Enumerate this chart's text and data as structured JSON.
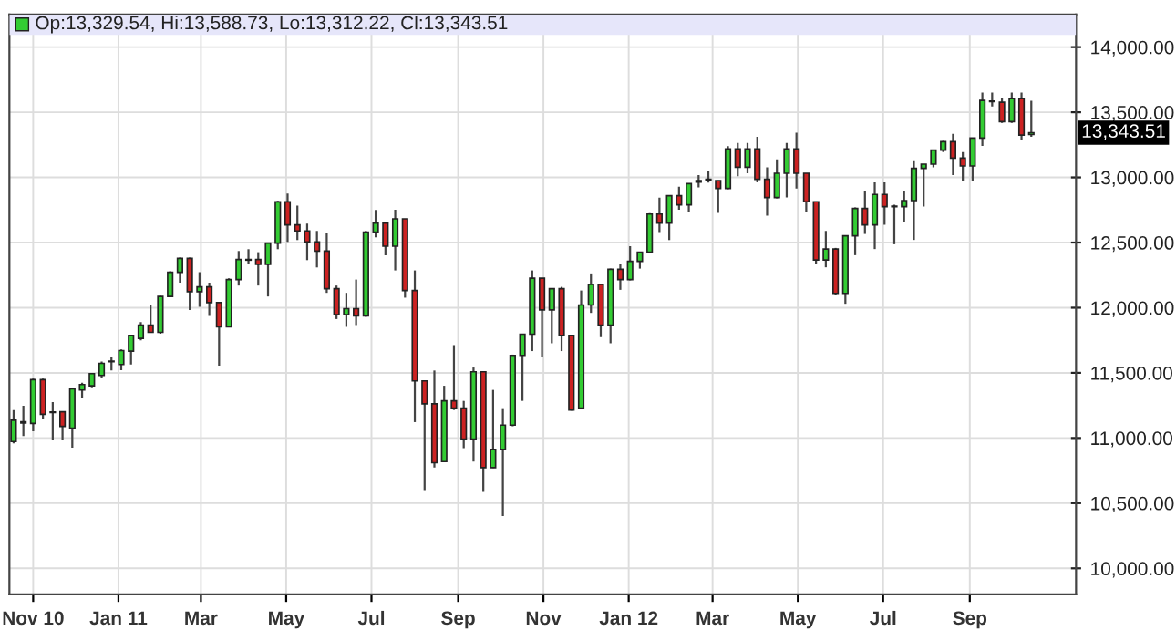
{
  "chart_data": {
    "type": "candlestick",
    "annotations": [
      "Op:13,329.54, Hi:13,588.73, Lo:13,312.22, Cl:13,343.51",
      "13,343.51"
    ],
    "x": [
      "2010-10-18",
      "2010-10-25",
      "2010-11-01",
      "2010-11-08",
      "2010-11-15",
      "2010-11-22",
      "2010-11-29",
      "2010-12-06",
      "2010-12-13",
      "2010-12-20",
      "2010-12-27",
      "2011-01-03",
      "2011-01-10",
      "2011-01-17",
      "2011-01-24",
      "2011-01-31",
      "2011-02-07",
      "2011-02-14",
      "2011-02-21",
      "2011-02-28",
      "2011-03-07",
      "2011-03-14",
      "2011-03-21",
      "2011-03-28",
      "2011-04-04",
      "2011-04-11",
      "2011-04-18",
      "2011-04-25",
      "2011-05-02",
      "2011-05-09",
      "2011-05-16",
      "2011-05-23",
      "2011-05-30",
      "2011-06-06",
      "2011-06-13",
      "2011-06-20",
      "2011-06-27",
      "2011-07-04",
      "2011-07-11",
      "2011-07-18",
      "2011-07-25",
      "2011-08-01",
      "2011-08-08",
      "2011-08-15",
      "2011-08-22",
      "2011-08-29",
      "2011-09-05",
      "2011-09-12",
      "2011-09-19",
      "2011-09-26",
      "2011-10-03",
      "2011-10-10",
      "2011-10-17",
      "2011-10-24",
      "2011-10-31",
      "2011-11-07",
      "2011-11-14",
      "2011-11-21",
      "2011-11-28",
      "2011-12-05",
      "2011-12-12",
      "2011-12-19",
      "2011-12-26",
      "2012-01-02",
      "2012-01-09",
      "2012-01-16",
      "2012-01-23",
      "2012-01-30",
      "2012-02-06",
      "2012-02-13",
      "2012-02-20",
      "2012-02-27",
      "2012-03-05",
      "2012-03-12",
      "2012-03-19",
      "2012-03-26",
      "2012-04-02",
      "2012-04-09",
      "2012-04-16",
      "2012-04-23",
      "2012-04-30",
      "2012-05-07",
      "2012-05-14",
      "2012-05-21",
      "2012-05-28",
      "2012-06-04",
      "2012-06-11",
      "2012-06-18",
      "2012-06-25",
      "2012-07-02",
      "2012-07-09",
      "2012-07-16",
      "2012-07-23",
      "2012-07-30",
      "2012-08-06",
      "2012-08-13",
      "2012-08-20",
      "2012-08-27",
      "2012-09-03",
      "2012-09-10",
      "2012-09-17",
      "2012-09-24",
      "2012-10-01",
      "2012-10-08",
      "2012-10-15"
    ],
    "ohlc": [
      [
        10973,
        11215,
        10959,
        11136
      ],
      [
        11115,
        11248,
        11015,
        11125
      ],
      [
        11112,
        11455,
        11052,
        11448
      ],
      [
        11448,
        11455,
        11145,
        11182
      ],
      [
        11200,
        11275,
        10982,
        11195
      ],
      [
        11201,
        11201,
        10982,
        11089
      ],
      [
        11075,
        11387,
        10926,
        11378
      ],
      [
        11368,
        11425,
        11308,
        11410
      ],
      [
        11401,
        11500,
        11390,
        11494
      ],
      [
        11480,
        11587,
        11462,
        11573
      ],
      [
        11585,
        11620,
        11518,
        11590
      ],
      [
        11564,
        11680,
        11520,
        11671
      ],
      [
        11667,
        11790,
        11564,
        11788
      ],
      [
        11764,
        11890,
        11750,
        11867
      ],
      [
        11867,
        12020,
        11811,
        11811
      ],
      [
        11811,
        12090,
        11800,
        12086
      ],
      [
        12086,
        12280,
        12080,
        12272
      ],
      [
        12272,
        12385,
        12193,
        12379
      ],
      [
        12379,
        12385,
        11983,
        12123
      ],
      [
        12123,
        12272,
        12007,
        12160
      ],
      [
        12160,
        12193,
        11937,
        12039
      ],
      [
        12039,
        12039,
        11555,
        11853
      ],
      [
        11853,
        12226,
        11850,
        12216
      ],
      [
        12216,
        12435,
        12170,
        12370
      ],
      [
        12365,
        12449,
        12332,
        12370
      ],
      [
        12370,
        12426,
        12170,
        12333
      ],
      [
        12333,
        12500,
        12086,
        12496
      ],
      [
        12496,
        12820,
        12449,
        12812
      ],
      [
        12812,
        12877,
        12505,
        12636
      ],
      [
        12636,
        12784,
        12519,
        12589
      ],
      [
        12589,
        12645,
        12365,
        12505
      ],
      [
        12505,
        12589,
        12309,
        12435
      ],
      [
        12435,
        12575,
        12114,
        12146
      ],
      [
        12146,
        12170,
        11913,
        11946
      ],
      [
        11946,
        12114,
        11853,
        11993
      ],
      [
        11993,
        12216,
        11867,
        11937
      ],
      [
        11937,
        12590,
        11930,
        12580
      ],
      [
        12580,
        12750,
        12540,
        12649
      ],
      [
        12649,
        12649,
        12402,
        12472
      ],
      [
        12472,
        12752,
        12286,
        12682
      ],
      [
        12682,
        12682,
        12077,
        12132
      ],
      [
        12132,
        12286,
        11122,
        11438
      ],
      [
        11438,
        11438,
        10600,
        11262
      ],
      [
        11262,
        11518,
        10773,
        10810
      ],
      [
        10819,
        11401,
        10819,
        11285
      ],
      [
        11285,
        11713,
        11215,
        11229
      ],
      [
        11229,
        11285,
        10922,
        10991
      ],
      [
        10991,
        11541,
        10819,
        11508
      ],
      [
        11508,
        11508,
        10586,
        10773
      ],
      [
        10773,
        11369,
        10770,
        10912
      ],
      [
        10912,
        11229,
        10400,
        11099
      ],
      [
        11099,
        11640,
        11090,
        11634
      ],
      [
        11634,
        11800,
        11285,
        11797
      ],
      [
        11797,
        12286,
        11667,
        12226
      ],
      [
        12226,
        12226,
        11620,
        11983
      ],
      [
        11983,
        12150,
        11727,
        12146
      ],
      [
        12146,
        12160,
        11667,
        11788
      ],
      [
        11788,
        11790,
        11210,
        11215
      ],
      [
        11229,
        12132,
        11225,
        12021
      ],
      [
        12021,
        12263,
        11960,
        12179
      ],
      [
        12179,
        12179,
        11774,
        11867
      ],
      [
        11867,
        12300,
        11727,
        12295
      ],
      [
        12295,
        12333,
        12137,
        12216
      ],
      [
        12216,
        12472,
        12210,
        12356
      ],
      [
        12356,
        12430,
        12300,
        12426
      ],
      [
        12426,
        12725,
        12420,
        12719
      ],
      [
        12719,
        12845,
        12580,
        12649
      ],
      [
        12649,
        12860,
        12519,
        12859
      ],
      [
        12859,
        12929,
        12752,
        12789
      ],
      [
        12789,
        12955,
        12738,
        12952
      ],
      [
        12965,
        13017,
        12924,
        12975
      ],
      [
        12975,
        13050,
        12960,
        12985
      ],
      [
        12975,
        12975,
        12728,
        12915
      ],
      [
        12915,
        13240,
        12910,
        13218
      ],
      [
        13218,
        13265,
        13009,
        13078
      ],
      [
        13078,
        13265,
        13032,
        13218
      ],
      [
        13218,
        13311,
        12962,
        12985
      ],
      [
        12985,
        13078,
        12706,
        12846
      ],
      [
        12846,
        13139,
        12840,
        13032
      ],
      [
        13032,
        13265,
        12846,
        13218
      ],
      [
        13218,
        13344,
        12915,
        13032
      ],
      [
        13032,
        13032,
        12738,
        12813
      ],
      [
        12813,
        12813,
        12333,
        12366
      ],
      [
        12366,
        12590,
        12310,
        12450
      ],
      [
        12450,
        12459,
        12100,
        12110
      ],
      [
        12110,
        12555,
        12030,
        12552
      ],
      [
        12552,
        12770,
        12403,
        12762
      ],
      [
        12762,
        12892,
        12566,
        12636
      ],
      [
        12636,
        12962,
        12450,
        12869
      ],
      [
        12869,
        12962,
        12636,
        12776
      ],
      [
        12776,
        12790,
        12487,
        12780
      ],
      [
        12776,
        12892,
        12659,
        12822
      ],
      [
        12822,
        13125,
        12520,
        13069
      ],
      [
        13069,
        13102,
        12776,
        13102
      ],
      [
        13102,
        13210,
        13078,
        13209
      ],
      [
        13209,
        13280,
        13195,
        13274
      ],
      [
        13274,
        13335,
        13018,
        13148
      ],
      [
        13148,
        13195,
        12971,
        13088
      ],
      [
        13088,
        13305,
        12971,
        13302
      ],
      [
        13302,
        13651,
        13242,
        13591
      ],
      [
        13581,
        13651,
        13544,
        13585
      ],
      [
        13577,
        13605,
        13418,
        13428
      ],
      [
        13428,
        13651,
        13418,
        13605
      ],
      [
        13605,
        13651,
        13288,
        13325
      ],
      [
        13329.54,
        13588.73,
        13312.22,
        13343.51
      ]
    ],
    "xlim": [
      "2010-10-15",
      "2012-11-16"
    ],
    "xticks": [
      {
        "value": "2010-11-01",
        "label": "Nov 10"
      },
      {
        "value": "2011-01-01",
        "label": "Jan 11"
      },
      {
        "value": "2011-03-01",
        "label": "Mar"
      },
      {
        "value": "2011-05-01",
        "label": "May"
      },
      {
        "value": "2011-07-01",
        "label": "Jul"
      },
      {
        "value": "2011-09-01",
        "label": "Sep"
      },
      {
        "value": "2011-11-01",
        "label": "Nov"
      },
      {
        "value": "2012-01-01",
        "label": "Jan 12"
      },
      {
        "value": "2012-03-01",
        "label": "Mar"
      },
      {
        "value": "2012-05-01",
        "label": "May"
      },
      {
        "value": "2012-07-01",
        "label": "Jul"
      },
      {
        "value": "2012-09-01",
        "label": "Sep"
      }
    ],
    "ylim": [
      9800,
      14250
    ],
    "yticks": [
      {
        "value": 10000,
        "label": "10,000.00"
      },
      {
        "value": 10500,
        "label": "10,500.00"
      },
      {
        "value": 11000,
        "label": "11,000.00"
      },
      {
        "value": 11500,
        "label": "11,500.00"
      },
      {
        "value": 12000,
        "label": "12,000.00"
      },
      {
        "value": 12500,
        "label": "12,500.00"
      },
      {
        "value": 13000,
        "label": "13,000.00"
      },
      {
        "value": 13500,
        "label": "13,500.00"
      },
      {
        "value": 14000,
        "label": "14,000.00"
      }
    ],
    "grid": true
  }
}
